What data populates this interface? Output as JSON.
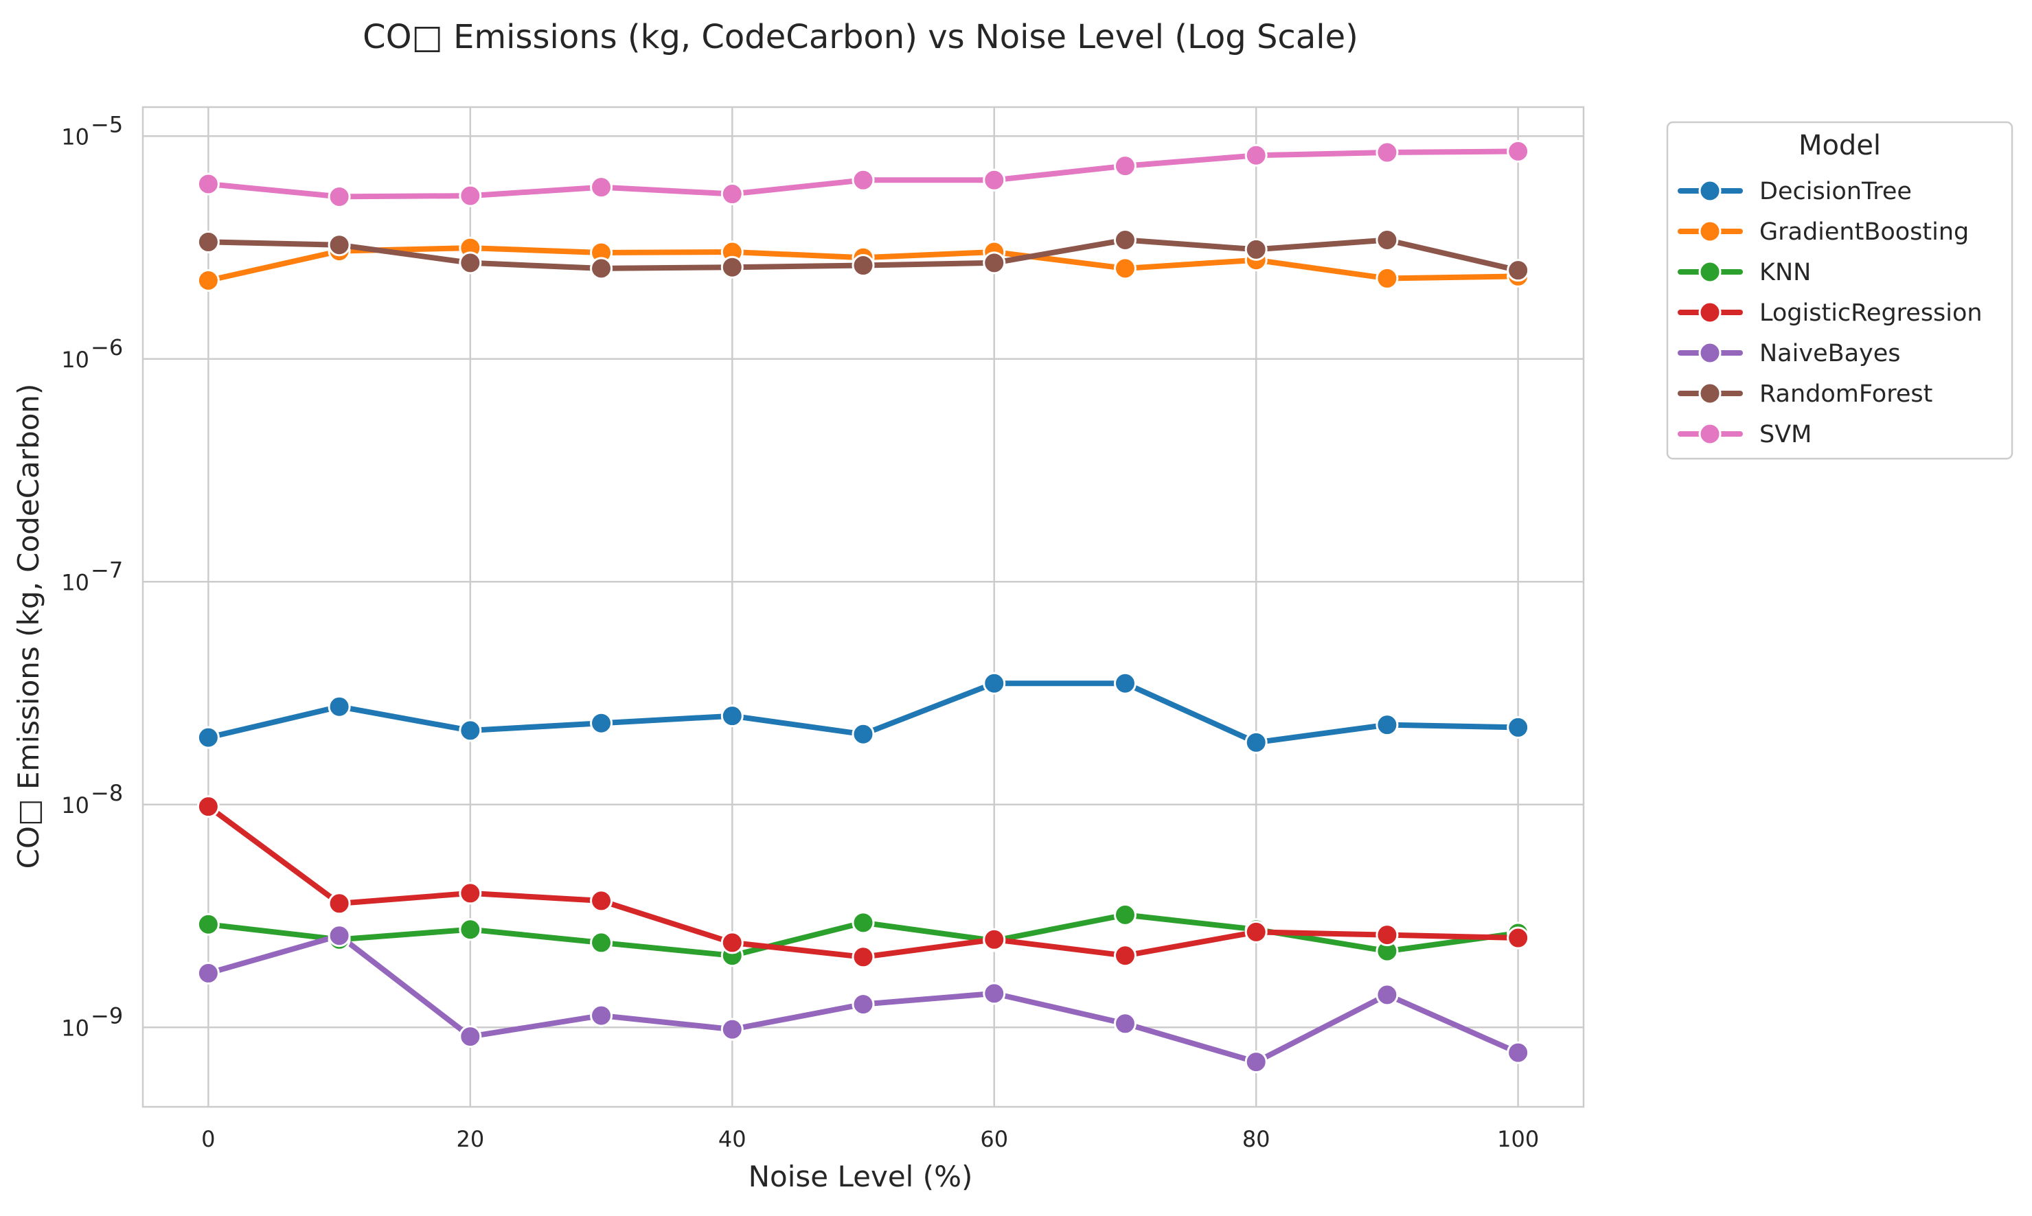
{
  "chart_data": {
    "type": "line",
    "title": "CO□ Emissions (kg, CodeCarbon) vs Noise Level (Log Scale)",
    "xlabel": "Noise Level (%)",
    "ylabel": "CO□ Emissions (kg, CodeCarbon)",
    "yscale": "log",
    "xlim": [
      -5,
      105
    ],
    "ylim": [
      4.4e-10,
      1.35e-05
    ],
    "grid": true,
    "legend_title": "Model",
    "legend_position": "outside-top-right",
    "x_ticks": [
      0,
      20,
      40,
      60,
      80,
      100
    ],
    "x_tick_labels": [
      "0",
      "20",
      "40",
      "60",
      "80",
      "100"
    ],
    "y_ticks": [
      1e-09,
      1e-08,
      1e-07,
      1e-06,
      1e-05
    ],
    "y_tick_labels": [
      {
        "base": "10",
        "exp": "−9"
      },
      {
        "base": "10",
        "exp": "−8"
      },
      {
        "base": "10",
        "exp": "−7"
      },
      {
        "base": "10",
        "exp": "−6"
      },
      {
        "base": "10",
        "exp": "−5"
      }
    ],
    "x": [
      0,
      10,
      20,
      30,
      40,
      50,
      60,
      70,
      80,
      90,
      100
    ],
    "series": [
      {
        "name": "DecisionTree",
        "color": "#1f77b4",
        "values": [
          2e-08,
          2.75e-08,
          2.15e-08,
          2.32e-08,
          2.5e-08,
          2.07e-08,
          3.5e-08,
          3.5e-08,
          1.9e-08,
          2.28e-08,
          2.22e-08
        ]
      },
      {
        "name": "GradientBoosting",
        "color": "#ff7f0e",
        "values": [
          2.25e-06,
          3.05e-06,
          3.15e-06,
          3e-06,
          3.02e-06,
          2.85e-06,
          3.02e-06,
          2.55e-06,
          2.78e-06,
          2.3e-06,
          2.35e-06
        ]
      },
      {
        "name": "KNN",
        "color": "#2ca02c",
        "values": [
          2.9e-09,
          2.48e-09,
          2.75e-09,
          2.4e-09,
          2.1e-09,
          2.95e-09,
          2.45e-09,
          3.2e-09,
          2.75e-09,
          2.2e-09,
          2.65e-09
        ]
      },
      {
        "name": "LogisticRegression",
        "color": "#d62728",
        "values": [
          9.8e-09,
          3.6e-09,
          4e-09,
          3.7e-09,
          2.4e-09,
          2.07e-09,
          2.48e-09,
          2.1e-09,
          2.68e-09,
          2.6e-09,
          2.52e-09
        ]
      },
      {
        "name": "NaiveBayes",
        "color": "#9467bd",
        "values": [
          1.75e-09,
          2.58e-09,
          9.1e-10,
          1.13e-09,
          9.8e-10,
          1.27e-09,
          1.42e-09,
          1.04e-09,
          7e-10,
          1.4e-09,
          7.7e-10
        ]
      },
      {
        "name": "RandomForest",
        "color": "#8c564b",
        "values": [
          3.35e-06,
          3.25e-06,
          2.7e-06,
          2.55e-06,
          2.58e-06,
          2.63e-06,
          2.7e-06,
          3.42e-06,
          3.1e-06,
          3.42e-06,
          2.5e-06
        ]
      },
      {
        "name": "SVM",
        "color": "#e377c2",
        "values": [
          6.1e-06,
          5.35e-06,
          5.4e-06,
          5.9e-06,
          5.5e-06,
          6.35e-06,
          6.35e-06,
          7.35e-06,
          8.2e-06,
          8.45e-06,
          8.55e-06
        ]
      }
    ]
  }
}
